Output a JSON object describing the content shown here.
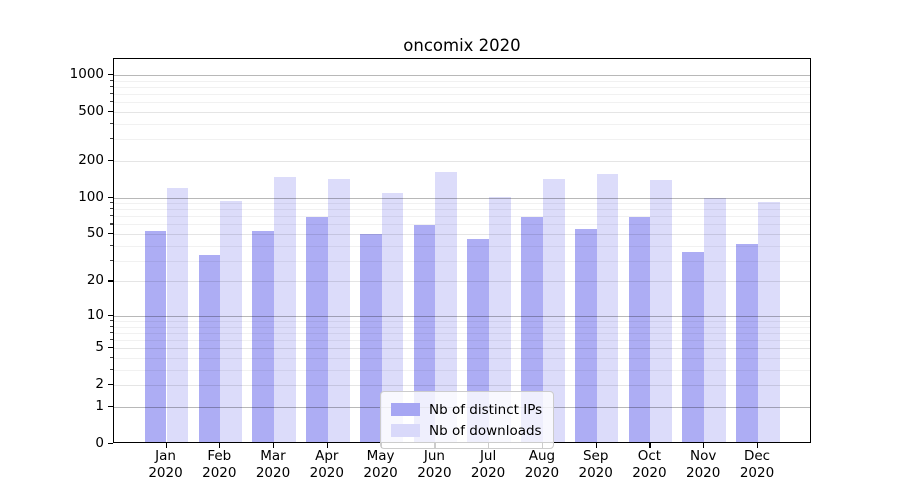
{
  "chart_data": {
    "type": "bar",
    "title": "oncomix 2020",
    "categories": [
      "Jan 2020",
      "Feb 2020",
      "Mar 2020",
      "Apr 2020",
      "May 2020",
      "Jun 2020",
      "Jul 2020",
      "Aug 2020",
      "Sep 2020",
      "Oct 2020",
      "Nov 2020",
      "Dec 2020"
    ],
    "series": [
      {
        "name": "Nb of distinct IPs",
        "color": "#a6a6f3",
        "values": [
          51,
          32,
          51,
          67,
          48,
          57,
          44,
          67,
          53,
          67,
          34,
          40
        ]
      },
      {
        "name": "Nb of downloads",
        "color": "#d9d9fa",
        "values": [
          115,
          90,
          143,
          137,
          105,
          156,
          97,
          137,
          151,
          133,
          95,
          89
        ]
      }
    ],
    "xlabel": "",
    "ylabel": "",
    "y_scale": "log(1+y)",
    "y_ticks": [
      0,
      1,
      2,
      5,
      10,
      20,
      50,
      100,
      200,
      500,
      1000
    ],
    "y_decade_ticks": [
      1,
      10,
      100,
      1000
    ],
    "y_minor_ticks": [
      3,
      4,
      6,
      7,
      8,
      9,
      30,
      40,
      60,
      70,
      80,
      90,
      300,
      400,
      600,
      700,
      800,
      900
    ],
    "ylim": [
      0,
      1100
    ],
    "grid": "horizontal",
    "legend_position": "lower-center",
    "frame_color": "#000000",
    "gridline_major_color": "#b8b8b8",
    "gridline_minor_color": "#ededed"
  }
}
